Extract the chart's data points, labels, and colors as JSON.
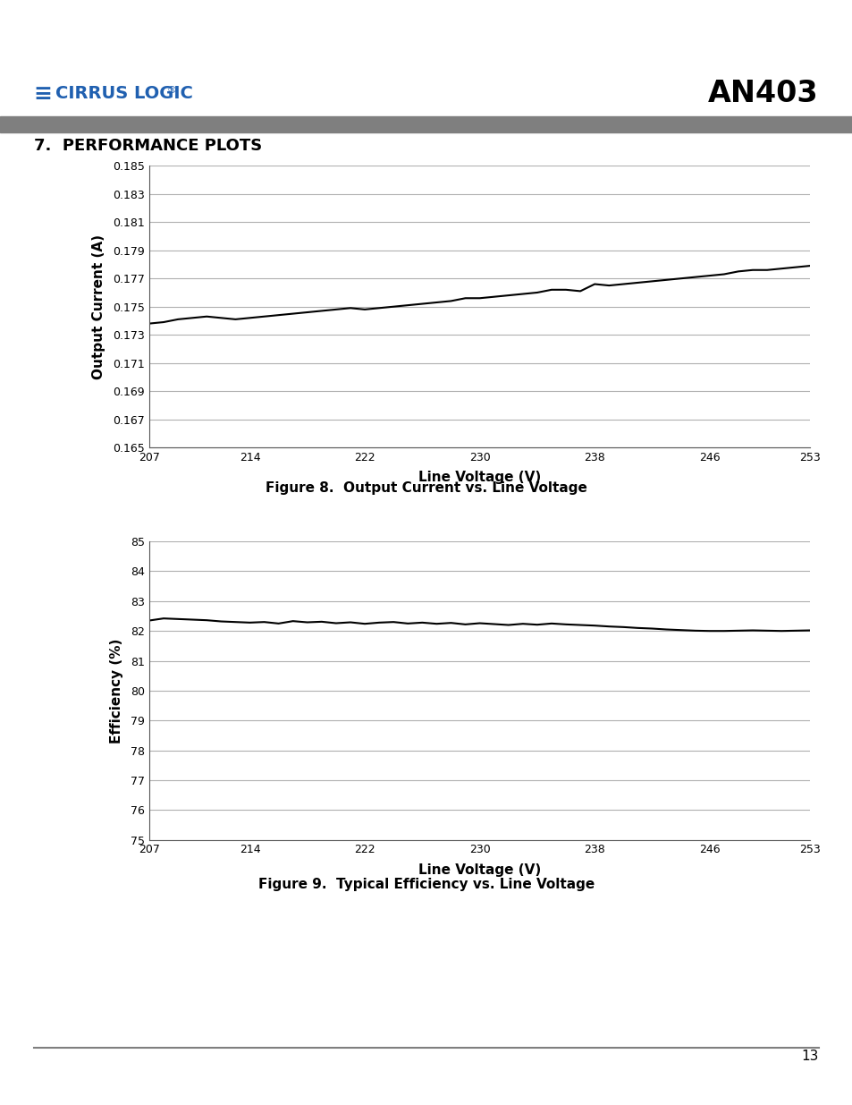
{
  "page_title": "AN403",
  "section_title": "7.  PERFORMANCE PLOTS",
  "fig1_caption": "Figure 8.  Output Current vs. Line Voltage",
  "fig2_caption": "Figure 9.  Typical Efficiency vs. Line Voltage",
  "page_number": "13",
  "header_bar_color": "#7f7f7f",
  "bg_color": "#ffffff",
  "chart1": {
    "xlabel": "Line Voltage (V)",
    "ylabel": "Output Current (A)",
    "xticks": [
      207,
      214,
      222,
      230,
      238,
      246,
      253
    ],
    "yticks": [
      0.165,
      0.167,
      0.169,
      0.171,
      0.173,
      0.175,
      0.177,
      0.179,
      0.181,
      0.183,
      0.185
    ],
    "ylim": [
      0.165,
      0.185
    ],
    "xlim": [
      207,
      253
    ],
    "x": [
      207,
      208,
      209,
      210,
      211,
      212,
      213,
      214,
      215,
      216,
      217,
      218,
      219,
      220,
      221,
      222,
      223,
      224,
      225,
      226,
      227,
      228,
      229,
      230,
      231,
      232,
      233,
      234,
      235,
      236,
      237,
      238,
      239,
      240,
      241,
      242,
      243,
      244,
      245,
      246,
      247,
      248,
      249,
      250,
      251,
      252,
      253
    ],
    "y": [
      0.1738,
      0.1739,
      0.1741,
      0.1742,
      0.1743,
      0.1742,
      0.1741,
      0.1742,
      0.1743,
      0.1744,
      0.1745,
      0.1746,
      0.1747,
      0.1748,
      0.1749,
      0.1748,
      0.1749,
      0.175,
      0.1751,
      0.1752,
      0.1753,
      0.1754,
      0.1756,
      0.1756,
      0.1757,
      0.1758,
      0.1759,
      0.176,
      0.1762,
      0.1762,
      0.1761,
      0.1766,
      0.1765,
      0.1766,
      0.1767,
      0.1768,
      0.1769,
      0.177,
      0.1771,
      0.1772,
      0.1773,
      0.1775,
      0.1776,
      0.1776,
      0.1777,
      0.1778,
      0.1779
    ],
    "line_color": "#000000",
    "line_width": 1.5,
    "grid_color": "#b0b0b0"
  },
  "chart2": {
    "xlabel": "Line Voltage (V)",
    "ylabel": "Efficiency (%)",
    "xticks": [
      207,
      214,
      222,
      230,
      238,
      246,
      253
    ],
    "yticks": [
      75,
      76,
      77,
      78,
      79,
      80,
      81,
      82,
      83,
      84,
      85
    ],
    "ylim": [
      75,
      85
    ],
    "xlim": [
      207,
      253
    ],
    "x": [
      207,
      208,
      209,
      210,
      211,
      212,
      213,
      214,
      215,
      216,
      217,
      218,
      219,
      220,
      221,
      222,
      223,
      224,
      225,
      226,
      227,
      228,
      229,
      230,
      231,
      232,
      233,
      234,
      235,
      236,
      237,
      238,
      239,
      240,
      241,
      242,
      243,
      244,
      245,
      246,
      247,
      248,
      249,
      250,
      251,
      252,
      253
    ],
    "y": [
      82.35,
      82.42,
      82.4,
      82.38,
      82.36,
      82.32,
      82.3,
      82.28,
      82.3,
      82.25,
      82.33,
      82.29,
      82.31,
      82.26,
      82.29,
      82.24,
      82.28,
      82.3,
      82.25,
      82.28,
      82.24,
      82.27,
      82.22,
      82.26,
      82.23,
      82.2,
      82.24,
      82.21,
      82.25,
      82.22,
      82.2,
      82.18,
      82.15,
      82.13,
      82.1,
      82.08,
      82.05,
      82.03,
      82.01,
      82.0,
      82.0,
      82.01,
      82.02,
      82.01,
      82.0,
      82.01,
      82.02
    ],
    "line_color": "#000000",
    "line_width": 1.5,
    "grid_color": "#b0b0b0"
  }
}
